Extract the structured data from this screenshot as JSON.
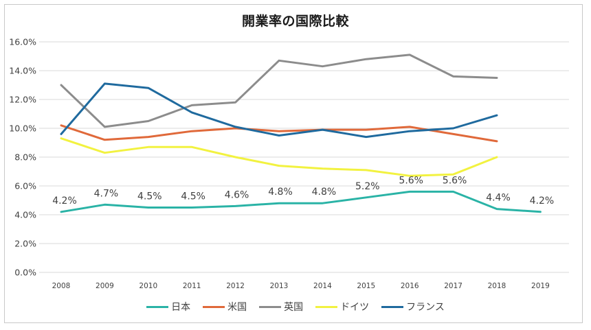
{
  "chart_data": {
    "type": "line",
    "title": "開業率の国際比較",
    "xlabel": "",
    "ylabel": "",
    "categories": [
      "2008",
      "2009",
      "2010",
      "2011",
      "2012",
      "2013",
      "2014",
      "2015",
      "2016",
      "2017",
      "2018",
      "2019"
    ],
    "ylim": [
      0,
      16
    ],
    "yticks": [
      "0.0%",
      "2.0%",
      "4.0%",
      "6.0%",
      "8.0%",
      "10.0%",
      "12.0%",
      "14.0%",
      "16.0%"
    ],
    "grid": true,
    "legend_position": "bottom",
    "series": [
      {
        "name": "日本",
        "color": "#2ab3a6",
        "values": [
          4.2,
          4.7,
          4.5,
          4.5,
          4.6,
          4.8,
          4.8,
          5.2,
          5.6,
          5.6,
          4.4,
          4.2
        ],
        "labels": [
          "4.2%",
          "4.7%",
          "4.5%",
          "4.5%",
          "4.6%",
          "4.8%",
          "4.8%",
          "5.2%",
          "5.6%",
          "5.6%",
          "4.4%",
          "4.2%"
        ]
      },
      {
        "name": "米国",
        "color": "#e0693a",
        "values": [
          10.2,
          9.2,
          9.4,
          9.8,
          10.0,
          9.8,
          9.9,
          9.9,
          10.1,
          9.6,
          9.1,
          null
        ]
      },
      {
        "name": "英国",
        "color": "#8c8c8c",
        "values": [
          13.0,
          10.1,
          10.5,
          11.6,
          11.8,
          14.7,
          14.3,
          14.8,
          15.1,
          13.6,
          13.5,
          null
        ]
      },
      {
        "name": "ドイツ",
        "color": "#f2f240",
        "values": [
          9.3,
          8.3,
          8.7,
          8.7,
          8.0,
          7.4,
          7.2,
          7.1,
          6.7,
          6.8,
          8.0,
          null
        ]
      },
      {
        "name": "フランス",
        "color": "#1f6a9e",
        "values": [
          9.6,
          13.1,
          12.8,
          11.1,
          10.1,
          9.5,
          9.9,
          9.4,
          9.8,
          10.0,
          10.9,
          null
        ]
      }
    ]
  }
}
